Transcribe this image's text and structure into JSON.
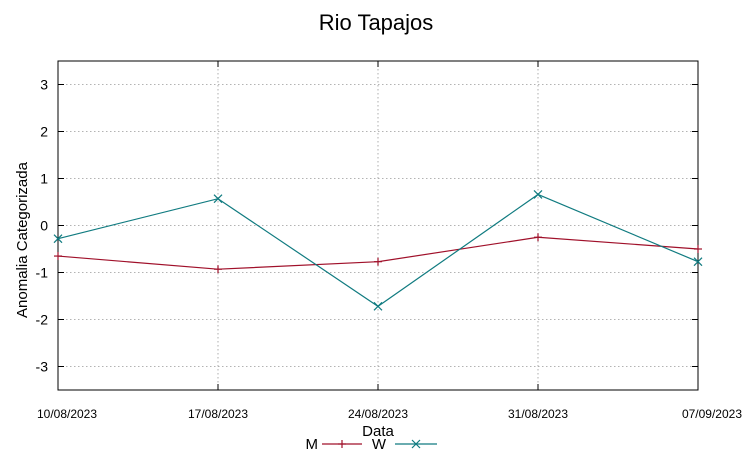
{
  "chart_data": {
    "type": "line",
    "title": "Rio Tapajos",
    "xlabel": "Data",
    "ylabel": "Anomalia Categorizada",
    "categories": [
      "10/08/2023",
      "17/08/2023",
      "24/08/2023",
      "31/08/2023",
      "07/09/2023"
    ],
    "y_ticks": [
      "3",
      "2",
      "1",
      "0",
      "-1",
      "-2",
      "-3"
    ],
    "ylim": [
      -3.5,
      3.5
    ],
    "grid": true,
    "legend_position": "bottom-center",
    "series": [
      {
        "name": "M",
        "color": "#a0102a",
        "marker": "plus",
        "values": [
          -0.65,
          -0.93,
          -0.77,
          -0.25,
          -0.5
        ]
      },
      {
        "name": "W",
        "color": "#107b80",
        "marker": "cross",
        "values": [
          -0.28,
          0.57,
          -1.72,
          0.66,
          -0.77
        ]
      }
    ]
  }
}
